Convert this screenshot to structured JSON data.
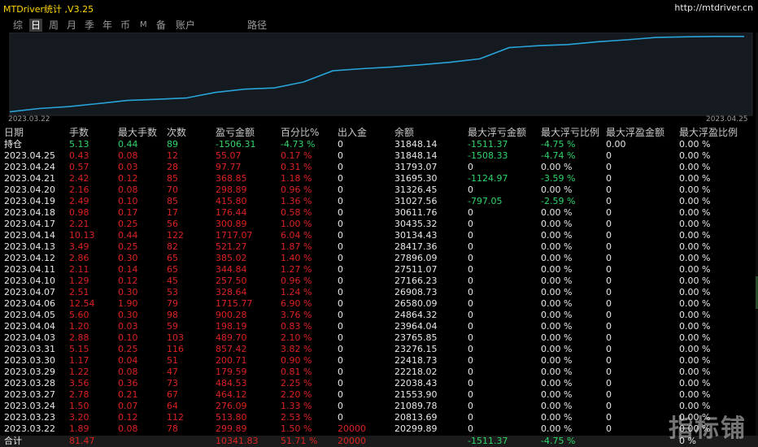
{
  "app": {
    "title": "MTDriver统计 ,V3.25",
    "url": "http://mtdriver.cn"
  },
  "tabs": [
    "综",
    "日",
    "周",
    "月",
    "季",
    "年",
    "币",
    "M",
    "备",
    "账户",
    "路径"
  ],
  "active_tab": 1,
  "chart": {
    "start_label": "2023.03.22",
    "end_label": "2023.04.25",
    "line_color": "#29a3d8",
    "balance": [
      20299.89,
      20813.69,
      21089.78,
      21553.9,
      22038.43,
      22218.02,
      22418.73,
      23276.15,
      23765.85,
      23964.04,
      24864.32,
      26580.09,
      26908.73,
      27166.23,
      27511.07,
      27896.09,
      28417.36,
      30134.43,
      30435.32,
      30611.76,
      31027.56,
      31326.45,
      31695.3,
      31793.07,
      31848.14,
      31848.14
    ]
  },
  "columns": [
    "日期",
    "手数",
    "最大手数",
    "次数",
    "盈亏金额",
    "百分比%",
    "出入金",
    "余额",
    "最大浮亏金额",
    "最大浮亏比例",
    "最大浮盈金额",
    "最大浮盈比例"
  ],
  "holding": {
    "label": "持仓",
    "lots": "5.13",
    "max_lots": "0.44",
    "count": "89",
    "pnl": "-1506.31",
    "pct": "-4.73 %",
    "deposit": "0",
    "balance": "31848.14",
    "max_dd": "-1511.37",
    "max_dd_pct": "-4.75 %",
    "max_fp": "0.00",
    "max_fp_pct": "0.00 %"
  },
  "rows": [
    [
      "2023.04.25",
      "0.43",
      "0.08",
      "12",
      "55.07",
      "0.17 %",
      "0",
      "31848.14",
      "-1508.33",
      "-4.74 %",
      "0",
      "0.00 %"
    ],
    [
      "2023.04.24",
      "0.57",
      "0.03",
      "28",
      "97.77",
      "0.31 %",
      "0",
      "31793.07",
      "0",
      "0.00 %",
      "0",
      "0.00 %"
    ],
    [
      "2023.04.21",
      "2.42",
      "0.12",
      "85",
      "368.85",
      "1.18 %",
      "0",
      "31695.30",
      "-1124.97",
      "-3.59 %",
      "0",
      "0.00 %"
    ],
    [
      "2023.04.20",
      "2.16",
      "0.08",
      "70",
      "298.89",
      "0.96 %",
      "0",
      "31326.45",
      "0",
      "0.00 %",
      "0",
      "0.00 %"
    ],
    [
      "2023.04.19",
      "2.49",
      "0.10",
      "85",
      "415.80",
      "1.36 %",
      "0",
      "31027.56",
      "-797.05",
      "-2.59 %",
      "0",
      "0.00 %"
    ],
    [
      "2023.04.18",
      "0.98",
      "0.17",
      "17",
      "176.44",
      "0.58 %",
      "0",
      "30611.76",
      "0",
      "0.00 %",
      "0",
      "0.00 %"
    ],
    [
      "2023.04.17",
      "2.21",
      "0.25",
      "56",
      "300.89",
      "1.00 %",
      "0",
      "30435.32",
      "0",
      "0.00 %",
      "0",
      "0.00 %"
    ],
    [
      "2023.04.14",
      "10.13",
      "0.44",
      "122",
      "1717.07",
      "6.04 %",
      "0",
      "30134.43",
      "0",
      "0.00 %",
      "0",
      "0.00 %"
    ],
    [
      "2023.04.13",
      "3.49",
      "0.25",
      "82",
      "521.27",
      "1.87 %",
      "0",
      "28417.36",
      "0",
      "0.00 %",
      "0",
      "0.00 %"
    ],
    [
      "2023.04.12",
      "2.86",
      "0.30",
      "65",
      "385.02",
      "1.40 %",
      "0",
      "27896.09",
      "0",
      "0.00 %",
      "0",
      "0.00 %"
    ],
    [
      "2023.04.11",
      "2.11",
      "0.14",
      "65",
      "344.84",
      "1.27 %",
      "0",
      "27511.07",
      "0",
      "0.00 %",
      "0",
      "0.00 %"
    ],
    [
      "2023.04.10",
      "1.29",
      "0.12",
      "45",
      "257.50",
      "0.96 %",
      "0",
      "27166.23",
      "0",
      "0.00 %",
      "0",
      "0.00 %"
    ],
    [
      "2023.04.07",
      "2.51",
      "0.30",
      "53",
      "328.64",
      "1.24 %",
      "0",
      "26908.73",
      "0",
      "0.00 %",
      "0",
      "0.00 %"
    ],
    [
      "2023.04.06",
      "12.54",
      "1.90",
      "79",
      "1715.77",
      "6.90 %",
      "0",
      "26580.09",
      "0",
      "0.00 %",
      "0",
      "0.00 %"
    ],
    [
      "2023.04.05",
      "5.60",
      "0.30",
      "98",
      "900.28",
      "3.76 %",
      "0",
      "24864.32",
      "0",
      "0.00 %",
      "0",
      "0.00 %"
    ],
    [
      "2023.04.04",
      "1.20",
      "0.03",
      "59",
      "198.19",
      "0.83 %",
      "0",
      "23964.04",
      "0",
      "0.00 %",
      "0",
      "0.00 %"
    ],
    [
      "2023.04.03",
      "2.88",
      "0.10",
      "103",
      "489.70",
      "2.10 %",
      "0",
      "23765.85",
      "0",
      "0.00 %",
      "0",
      "0.00 %"
    ],
    [
      "2023.03.31",
      "5.15",
      "0.25",
      "116",
      "857.42",
      "3.82 %",
      "0",
      "23276.15",
      "0",
      "0.00 %",
      "0",
      "0.00 %"
    ],
    [
      "2023.03.30",
      "1.17",
      "0.04",
      "51",
      "200.71",
      "0.90 %",
      "0",
      "22418.73",
      "0",
      "0.00 %",
      "0",
      "0.00 %"
    ],
    [
      "2023.03.29",
      "1.22",
      "0.08",
      "47",
      "179.59",
      "0.81 %",
      "0",
      "22218.02",
      "0",
      "0.00 %",
      "0",
      "0.00 %"
    ],
    [
      "2023.03.28",
      "3.56",
      "0.36",
      "73",
      "484.53",
      "2.25 %",
      "0",
      "22038.43",
      "0",
      "0.00 %",
      "0",
      "0.00 %"
    ],
    [
      "2023.03.27",
      "2.78",
      "0.21",
      "67",
      "464.12",
      "2.20 %",
      "0",
      "21553.90",
      "0",
      "0.00 %",
      "0",
      "0.00 %"
    ],
    [
      "2023.03.24",
      "1.50",
      "0.07",
      "64",
      "276.09",
      "1.33 %",
      "0",
      "21089.78",
      "0",
      "0.00 %",
      "0",
      "0.00 %"
    ],
    [
      "2023.03.23",
      "3.20",
      "0.12",
      "112",
      "513.80",
      "2.53 %",
      "0",
      "20813.69",
      "0",
      "0.00 %",
      "0",
      "0.00 %"
    ],
    [
      "2023.03.22",
      "1.89",
      "0.08",
      "78",
      "299.89",
      "1.50 %",
      "20000",
      "20299.89",
      "0",
      "0.00 %",
      "0",
      "0.00 %"
    ]
  ],
  "total": {
    "label": "合计",
    "lots": "81.47",
    "pnl": "10341.83",
    "pct": "51.71 %",
    "deposit": "20000",
    "max_dd": "-1511.37",
    "max_dd_pct": "-4.75 %",
    "last": "0 %"
  },
  "watermark": "指标铺"
}
